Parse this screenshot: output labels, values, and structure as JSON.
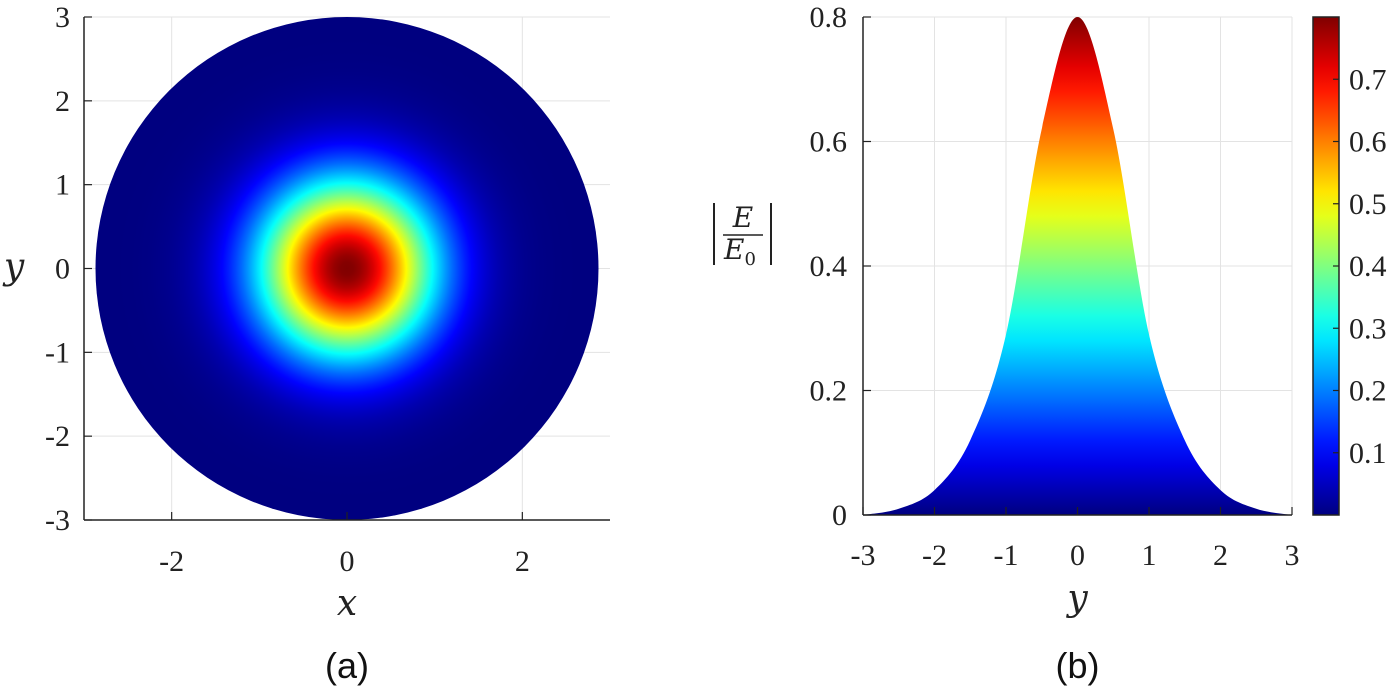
{
  "chart_data": [
    {
      "panel": "(a)",
      "type": "heatmap",
      "xlabel": "x",
      "ylabel": "y",
      "xlim": [
        -3,
        3
      ],
      "ylim": [
        -3,
        3
      ],
      "x_ticks": [
        "-2",
        "0",
        "2"
      ],
      "x_tick_values": [
        -2,
        0,
        2
      ],
      "y_ticks": [
        "3",
        "2",
        "1",
        "0",
        "-1",
        "-2",
        "-3"
      ],
      "y_tick_values": [
        3,
        2,
        1,
        0,
        -1,
        -2,
        -3
      ],
      "grid": true,
      "domain_radius": 3,
      "field": "radially symmetric, peak at (0,0)",
      "peak_value": 0.8,
      "falloff_sigma": 0.7
    },
    {
      "panel": "(b)",
      "type": "area",
      "xlabel": "y",
      "ylabel": "|E/E0|",
      "ylabel_num": "E",
      "ylabel_den": "E",
      "ylabel_den_sub": "0",
      "xlim": [
        -3,
        3
      ],
      "ylim": [
        0,
        0.8
      ],
      "x_ticks": [
        "-3",
        "-2",
        "-1",
        "0",
        "1",
        "2",
        "3"
      ],
      "x_tick_values": [
        -3,
        -2,
        -1,
        0,
        1,
        2,
        3
      ],
      "y_ticks": [
        "0.8",
        "0.6",
        "0.4",
        "0.2",
        "0"
      ],
      "y_tick_values": [
        0.8,
        0.6,
        0.4,
        0.2,
        0
      ],
      "grid": true,
      "x": [
        -3,
        -2.5,
        -2,
        -1.5,
        -1,
        -0.5,
        0,
        0.5,
        1,
        1.5,
        2,
        2.5,
        3
      ],
      "values": [
        0,
        0.01,
        0.04,
        0.12,
        0.29,
        0.62,
        0.8,
        0.62,
        0.29,
        0.12,
        0.04,
        0.01,
        0
      ],
      "fill": "colormap by value (jet)"
    }
  ],
  "colorbar": {
    "range": [
      0,
      0.8
    ],
    "ticks": [
      "0.7",
      "0.6",
      "0.5",
      "0.4",
      "0.3",
      "0.2",
      "0.1"
    ],
    "tick_values": [
      0.7,
      0.6,
      0.5,
      0.4,
      0.3,
      0.2,
      0.1
    ],
    "colormap": "jet"
  },
  "labels": {
    "a": "(a)",
    "b": "(b)"
  }
}
